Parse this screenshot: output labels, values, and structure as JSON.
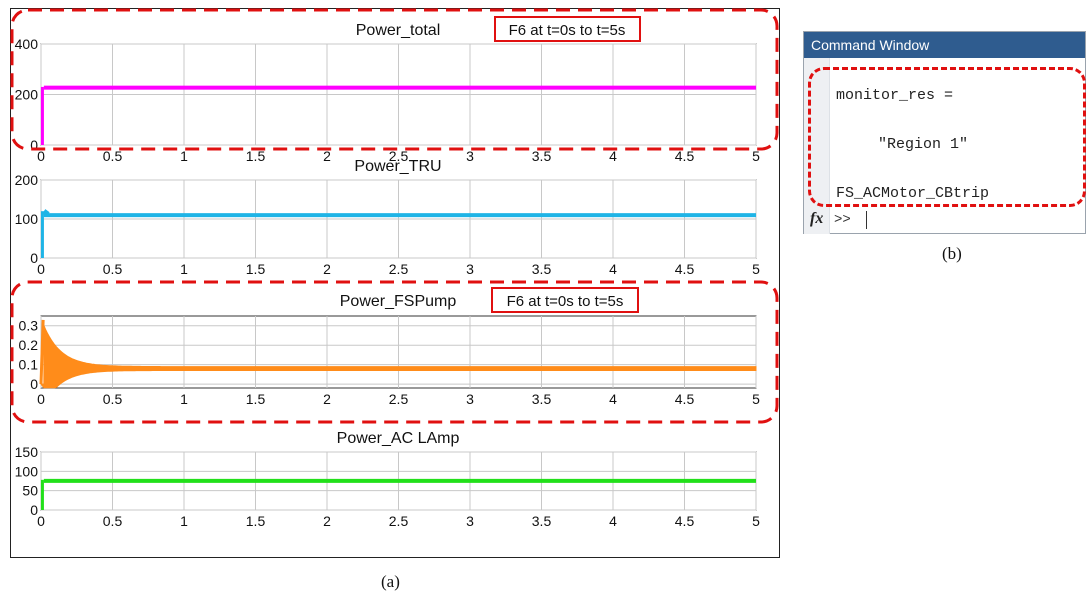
{
  "colors": {
    "total": "#ff00ff",
    "tru": "#1fb4e6",
    "fspump": "#ff8c1a",
    "aclamp": "#22e01a",
    "highlight": "#e01010",
    "command_titlebar": "#2f5c8f"
  },
  "annotations": {
    "fault_label_1": "F6 at t=0s to t=5s",
    "fault_label_2": "F6 at t=0s to t=5s"
  },
  "captions": {
    "a": "(a)",
    "b": "(b)"
  },
  "command_window": {
    "title": "Command Window",
    "line1": "monitor_res =",
    "line2": "\"Region 1\"",
    "line3": "FS_ACMotor_CBtrip",
    "prompt": ">>",
    "fx_icon": "fx"
  },
  "chart_data": [
    {
      "type": "line",
      "title": "Power_total",
      "xlabel": "",
      "ylabel": "",
      "xlim": [
        0,
        5
      ],
      "ylim": [
        0,
        400
      ],
      "xticks": [
        "0",
        "0.5",
        "1",
        "1.5",
        "2",
        "2.5",
        "3",
        "3.5",
        "4",
        "4.5",
        "5"
      ],
      "yticks": [
        "0",
        "200",
        "400"
      ],
      "grid": true,
      "series": [
        {
          "x": [
            0,
            0.01,
            0.02,
            5
          ],
          "y": [
            0,
            0,
            230,
            230
          ],
          "band": 10
        }
      ]
    },
    {
      "type": "line",
      "title": "Power_TRU",
      "xlabel": "",
      "ylabel": "",
      "xlim": [
        0,
        5
      ],
      "ylim": [
        0,
        200
      ],
      "xticks": [
        "0",
        "0.5",
        "1",
        "1.5",
        "2",
        "2.5",
        "3",
        "3.5",
        "4",
        "4.5",
        "5"
      ],
      "yticks": [
        "0",
        "100",
        "200"
      ],
      "grid": true,
      "series": [
        {
          "x": [
            0,
            0.01,
            0.02,
            0.05,
            5
          ],
          "y": [
            0,
            0,
            120,
            112,
            112
          ],
          "band": 6
        }
      ]
    },
    {
      "type": "line",
      "title": "Power_FSPump",
      "xlabel": "",
      "ylabel": "",
      "xlim": [
        0,
        5
      ],
      "ylim": [
        -0.02,
        0.35
      ],
      "xticks": [
        "0",
        "0.5",
        "1",
        "1.5",
        "2",
        "2.5",
        "3",
        "3.5",
        "4",
        "4.5",
        "5"
      ],
      "yticks": [
        "0",
        "0.1",
        "0.2",
        "0.3"
      ],
      "grid": true,
      "series": [
        {
          "steady": 0.08,
          "initial": 0.33,
          "decay": 0.12,
          "band": 0.02,
          "x_end": 5
        }
      ]
    },
    {
      "type": "line",
      "title": "Power_AC LAmp",
      "xlabel": "",
      "ylabel": "",
      "xlim": [
        0,
        5
      ],
      "ylim": [
        0,
        150
      ],
      "xticks": [
        "0",
        "0.5",
        "1",
        "1.5",
        "2",
        "2.5",
        "3",
        "3.5",
        "4",
        "4.5",
        "5"
      ],
      "yticks": [
        "0",
        "50",
        "100",
        "150"
      ],
      "grid": true,
      "series": [
        {
          "x": [
            0,
            0.01,
            0.02,
            5
          ],
          "y": [
            0,
            0,
            78,
            78
          ],
          "band": 5
        }
      ]
    }
  ]
}
